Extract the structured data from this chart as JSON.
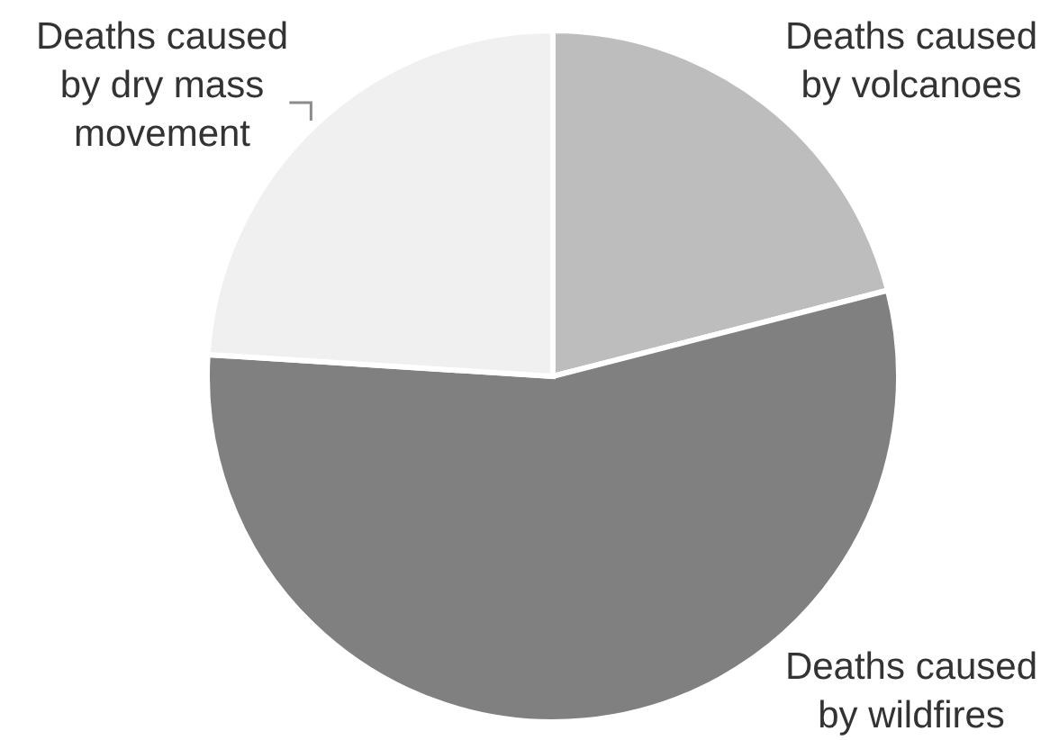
{
  "chart_data": {
    "type": "pie",
    "categories": [
      "Deaths caused by volcanoes",
      "Deaths caused by wildfires",
      "Deaths caused by dry mass movement"
    ],
    "values": [
      21,
      55,
      24
    ],
    "colors": [
      "#bdbdbd",
      "#808080",
      "#f0f0f0"
    ]
  }
}
